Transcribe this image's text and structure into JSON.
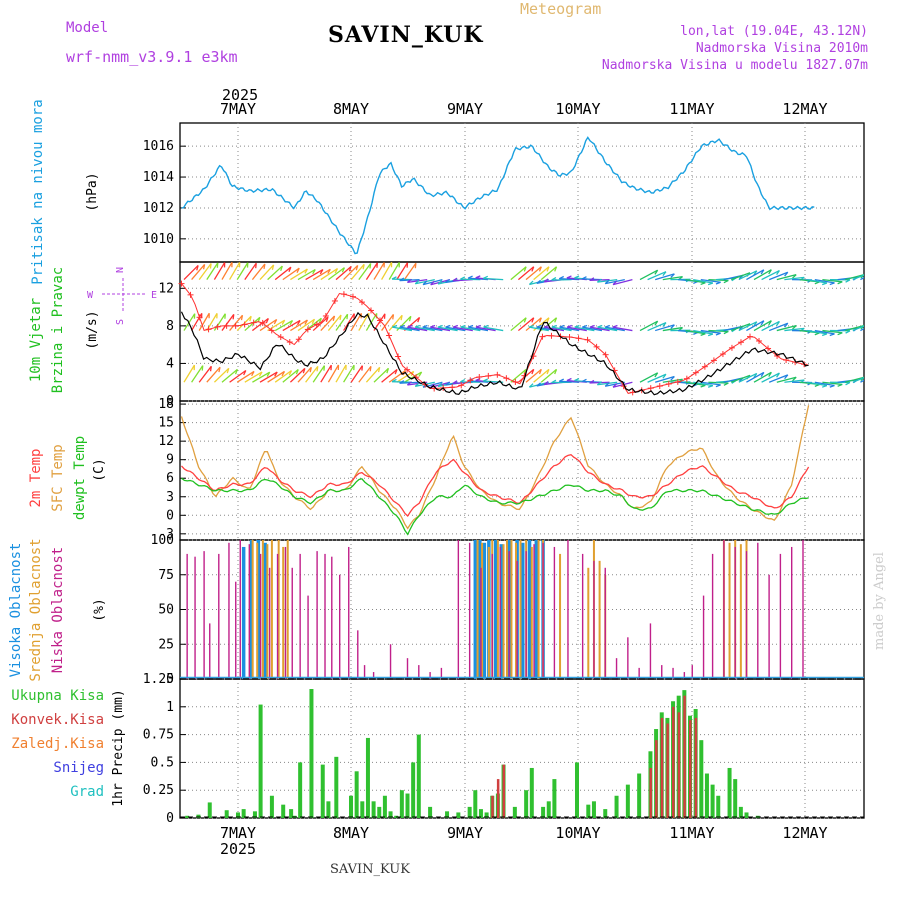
{
  "header": {
    "title": "SAVIN_KUK",
    "subtitle": "Meteogram",
    "model_label": "Model",
    "model_name": "wrf-nmm_v3.9.1  e3km",
    "lonlat": "lon,lat (19.04E, 43.12N)",
    "elevation": "Nadmorska Visina 2010m",
    "model_elevation": "Nadmorska Visina u modelu 1827.07m",
    "footer_title": "SAVIN_KUK",
    "watermark": "made by Angel"
  },
  "colors": {
    "pressure": "#1aa0e0",
    "wind_speed": "#000000",
    "gust": "#ff3030",
    "t2m": "#ff4040",
    "sfc": "#e0a040",
    "dewpt": "#20c020",
    "cloud_high": "#1a90e0",
    "cloud_mid": "#e0a030",
    "cloud_low": "#c0208a",
    "total_precip": "#30c030",
    "conv_precip": "#d04040",
    "frozen": "#f08030",
    "snow": "#4040e0",
    "hail": "#20c0c0",
    "label_purple": "#b040e0",
    "subtitle": "#e0b870"
  },
  "chart_data": [
    {
      "type": "line",
      "id": "pressure",
      "panel_label_color": "Pritisak na nivou mora",
      "unit_label": "(hPa)",
      "x_ticks": [
        "7MAY",
        "8MAY",
        "9MAY",
        "10MAY",
        "11MAY",
        "12MAY"
      ],
      "year": "2025",
      "ylim": [
        1008.5,
        1017.5
      ],
      "y_ticks": [
        "1010",
        "1012",
        "1014",
        "1016"
      ],
      "y_tick_values": [
        1010,
        1012,
        1014,
        1016
      ],
      "x_keypoints_days": [
        0,
        0.2,
        0.35,
        0.45,
        0.6,
        0.8,
        1.0,
        1.1,
        1.2,
        1.4,
        1.55,
        1.65,
        1.75,
        1.85,
        1.95,
        2.05,
        2.2,
        2.35,
        2.5,
        2.65,
        2.8,
        2.95,
        3.1,
        3.25,
        3.35,
        3.45,
        3.6,
        3.75,
        3.9,
        4.0,
        4.15,
        4.3,
        4.45,
        4.6,
        4.75,
        4.9,
        5.0,
        5.1,
        5.2,
        5.35,
        5.55,
        5.6
      ],
      "values": [
        1012.0,
        1013.2,
        1014.8,
        1013.4,
        1013.1,
        1013.2,
        1012.0,
        1013.1,
        1012.5,
        1010.4,
        1009.0,
        1011.4,
        1014.2,
        1014.9,
        1013.4,
        1013.9,
        1012.8,
        1013.0,
        1012.0,
        1012.7,
        1013.2,
        1015.8,
        1016.0,
        1014.6,
        1014.1,
        1014.3,
        1016.6,
        1015.0,
        1013.7,
        1013.3,
        1013.0,
        1013.3,
        1014.4,
        1016.0,
        1016.4,
        1015.6,
        1015.4,
        1013.4,
        1012.0,
        1012.0,
        1012.0,
        1012.0
      ],
      "series": [
        {
          "name": "Pritisak",
          "color_key": "pressure"
        }
      ]
    },
    {
      "type": "line",
      "id": "wind",
      "panel_label_line1": "10m Vjetar",
      "panel_label_line2": "Brzina i Pravac",
      "unit_label": "(m/s)",
      "compass": {
        "north": "N",
        "west": "W",
        "east": "E",
        "south": "S"
      },
      "ylim": [
        0,
        14.8
      ],
      "y_ticks": [
        "0",
        "4",
        "8",
        "12"
      ],
      "y_tick_values": [
        0,
        4,
        8,
        12
      ],
      "x_keypoints_days": [
        0,
        0.1,
        0.2,
        0.35,
        0.5,
        0.7,
        0.85,
        1.0,
        1.1,
        1.25,
        1.4,
        1.55,
        1.65,
        1.8,
        1.95,
        2.2,
        2.45,
        2.6,
        2.8,
        3.0,
        3.2,
        3.45,
        3.6,
        3.75,
        3.95,
        4.2,
        4.45,
        4.65,
        4.85,
        5.05,
        5.3,
        5.55
      ],
      "speed": [
        9.5,
        7.5,
        4.5,
        4.2,
        5.0,
        3.5,
        6.2,
        4.5,
        3.8,
        4.5,
        6.8,
        9.2,
        9.0,
        6.0,
        3.0,
        1.5,
        0.8,
        1.5,
        2.0,
        1.2,
        8.5,
        6.0,
        5.0,
        4.0,
        1.2,
        0.8,
        1.2,
        2.5,
        4.0,
        5.5,
        5.0,
        3.8
      ],
      "gust": [
        12.5,
        11.0,
        7.5,
        8.0,
        8.0,
        8.5,
        7.0,
        6.0,
        7.5,
        8.5,
        11.5,
        11.0,
        10.0,
        8.0,
        3.8,
        1.3,
        1.5,
        2.5,
        2.8,
        1.8,
        7.0,
        6.8,
        6.5,
        5.0,
        0.8,
        1.5,
        2.2,
        3.8,
        5.5,
        7.0,
        4.5,
        3.8
      ],
      "series": [
        {
          "name": "Brzina",
          "color_key": "wind_speed"
        },
        {
          "name": "Udar",
          "color_key": "gust"
        }
      ]
    },
    {
      "type": "line",
      "id": "temperature",
      "panel_label_line1": "2m Temp",
      "panel_label_line2": "SFC Temp",
      "panel_label_line3": "dewpt Temp",
      "unit_label": "(C)",
      "ylim": [
        -4,
        18.5
      ],
      "y_ticks": [
        "-3",
        "0",
        "3",
        "6",
        "9",
        "12",
        "15",
        "18"
      ],
      "y_tick_values": [
        -3,
        0,
        3,
        6,
        9,
        12,
        15,
        18
      ],
      "x_keypoints_days": [
        0,
        0.15,
        0.3,
        0.45,
        0.6,
        0.75,
        0.85,
        1.0,
        1.15,
        1.3,
        1.45,
        1.6,
        1.75,
        1.9,
        2.0,
        2.1,
        2.25,
        2.4,
        2.5,
        2.65,
        2.8,
        3.0,
        3.15,
        3.3,
        3.45,
        3.6,
        3.75,
        3.9,
        4.0,
        4.15,
        4.3,
        4.45,
        4.6,
        4.75,
        4.9,
        5.05,
        5.25,
        5.4,
        5.55
      ],
      "t2m": [
        8,
        6,
        4,
        5,
        5,
        8,
        6,
        4,
        3,
        5,
        5,
        7,
        5,
        2,
        0,
        2,
        7,
        9,
        7,
        4,
        3,
        2,
        5,
        8,
        10,
        7,
        5,
        4,
        3,
        3,
        5,
        7,
        8,
        6,
        4,
        3,
        1,
        3,
        8
      ],
      "sfc": [
        16,
        8,
        3,
        6,
        4,
        11,
        6,
        3,
        1,
        4,
        4,
        8,
        4,
        1,
        -2,
        0,
        6,
        13,
        8,
        4,
        2,
        1,
        6,
        12,
        16,
        8,
        5,
        3,
        1,
        2,
        8,
        10,
        11,
        6,
        3,
        1,
        -1,
        5,
        18
      ],
      "dewpt": [
        6,
        5,
        4,
        4,
        4,
        6,
        5,
        3,
        2,
        4,
        4,
        6,
        3,
        0,
        -3,
        0,
        3,
        3,
        5,
        3,
        2,
        2,
        3,
        4,
        5,
        4,
        4,
        3,
        1,
        1,
        4,
        4,
        4,
        3,
        2,
        1,
        0,
        2,
        3
      ],
      "series": [
        {
          "name": "2m Temp",
          "color_key": "t2m"
        },
        {
          "name": "SFC Temp",
          "color_key": "sfc"
        },
        {
          "name": "dewpt Temp",
          "color_key": "dewpt"
        }
      ]
    },
    {
      "type": "bar",
      "id": "clouds",
      "panel_label_line1": "Visoka Oblacnost",
      "panel_label_line2": "Srednja Oblacnost",
      "panel_label_line3": "Niska Oblacnost",
      "unit_label": "(%)",
      "ylim": [
        0,
        100
      ],
      "y_ticks": [
        "0",
        "25",
        "50",
        "75",
        "100"
      ],
      "y_tick_values": [
        0,
        25,
        50,
        75,
        100
      ],
      "low_x_days": [
        0.05,
        0.12,
        0.2,
        0.25,
        0.33,
        0.42,
        0.48,
        0.52,
        0.6,
        0.7,
        0.78,
        0.85,
        0.92,
        0.98,
        1.05,
        1.12,
        1.2,
        1.27,
        1.33,
        1.4,
        1.48,
        1.56,
        1.62,
        1.7,
        1.85,
        2.0,
        2.1,
        2.2,
        2.3,
        2.45,
        2.55,
        2.65,
        2.75,
        2.82,
        2.9,
        2.97,
        3.05,
        3.12,
        3.2,
        3.3,
        3.42,
        3.55,
        3.65,
        3.75,
        3.85,
        3.95,
        4.05,
        4.15,
        4.25,
        4.35,
        4.45,
        4.52,
        4.62,
        4.7,
        4.8,
        4.9,
        5.0,
        5.1,
        5.2,
        5.3,
        5.4,
        5.5
      ],
      "low_values": [
        90,
        88,
        92,
        40,
        90,
        98,
        70,
        100,
        97,
        90,
        80,
        90,
        95,
        80,
        90,
        60,
        92,
        90,
        88,
        75,
        95,
        35,
        10,
        5,
        25,
        15,
        10,
        5,
        8,
        100,
        98,
        80,
        90,
        95,
        92,
        85,
        92,
        97,
        98,
        95,
        100,
        90,
        85,
        80,
        15,
        30,
        8,
        40,
        10,
        8,
        5,
        10,
        60,
        90,
        100,
        95,
        92,
        98,
        75,
        90,
        95,
        100
      ],
      "mid_x_days": [
        0.63,
        0.67,
        0.72,
        0.76,
        0.8,
        0.86,
        0.9,
        0.94,
        2.62,
        2.66,
        2.72,
        2.75,
        2.8,
        2.85,
        2.88,
        2.92,
        2.96,
        3.0,
        3.05,
        3.1,
        3.16,
        3.2,
        3.35,
        3.6,
        3.65,
        3.7,
        3.75,
        4.8,
        4.85,
        4.9,
        4.95,
        5.0
      ],
      "mid_values": [
        100,
        98,
        100,
        97,
        100,
        100,
        95,
        100,
        100,
        98,
        95,
        100,
        100,
        97,
        100,
        100,
        98,
        100,
        100,
        95,
        100,
        100,
        90,
        80,
        100,
        85,
        75,
        100,
        98,
        100,
        97,
        100
      ],
      "high_x_days": [
        0.55,
        0.62,
        0.68,
        0.74,
        2.6,
        2.64,
        2.68,
        2.72,
        2.78,
        2.83,
        2.9,
        2.97,
        3.02,
        3.08,
        3.14,
        3.2
      ],
      "high_values": [
        95,
        100,
        100,
        98,
        100,
        100,
        98,
        100,
        100,
        97,
        100,
        100,
        98,
        100,
        100,
        100
      ],
      "series": [
        {
          "name": "Visoka",
          "color_key": "cloud_high"
        },
        {
          "name": "Srednja",
          "color_key": "cloud_mid"
        },
        {
          "name": "Niska",
          "color_key": "cloud_low"
        }
      ]
    },
    {
      "type": "bar",
      "id": "precip",
      "unit_label": "1hr Precip (mm)",
      "legend": [
        "Ukupna Kisa",
        "Konvek.Kisa",
        "Zaledj.Kisa",
        "Snijeg",
        "Grad"
      ],
      "ylim": [
        0,
        1.25
      ],
      "y_ticks": [
        "0",
        "0.25",
        "0.5",
        "0.75",
        "1",
        "1.25"
      ],
      "y_tick_values": [
        0,
        0.25,
        0.5,
        0.75,
        1,
        1.25
      ],
      "x_bottom_ticks": [
        "7MAY",
        "8MAY",
        "9MAY",
        "10MAY",
        "11MAY",
        "12MAY"
      ],
      "year_bottom": "2025",
      "total_x_days": [
        0.05,
        0.15,
        0.25,
        0.4,
        0.5,
        0.55,
        0.65,
        0.7,
        0.8,
        0.9,
        0.97,
        1.0,
        1.05,
        1.15,
        1.25,
        1.3,
        1.37,
        1.5,
        1.55,
        1.6,
        1.65,
        1.7,
        1.75,
        1.8,
        1.85,
        1.9,
        1.95,
        2.0,
        2.05,
        2.1,
        2.2,
        2.35,
        2.45,
        2.55,
        2.6,
        2.65,
        2.7,
        2.75,
        2.8,
        2.85,
        2.95,
        3.05,
        3.1,
        3.2,
        3.25,
        3.3,
        3.5,
        3.6,
        3.65,
        3.75,
        3.85,
        3.95,
        4.05,
        4.15,
        4.2,
        4.25,
        4.3,
        4.35,
        4.4,
        4.45,
        4.5,
        4.55,
        4.6,
        4.65,
        4.7,
        4.75,
        4.85,
        4.9,
        4.95,
        5.0,
        5.1
      ],
      "total_values": [
        0.02,
        0.03,
        0.14,
        0.07,
        0.05,
        0.08,
        0.06,
        1.02,
        0.2,
        0.12,
        0.08,
        0.02,
        0.5,
        1.16,
        0.48,
        0.15,
        0.55,
        0.2,
        0.42,
        0.15,
        0.72,
        0.15,
        0.1,
        0.2,
        0.06,
        0.02,
        0.25,
        0.22,
        0.5,
        0.75,
        0.1,
        0.06,
        0.05,
        0.1,
        0.25,
        0.08,
        0.05,
        0.2,
        0.22,
        0.48,
        0.1,
        0.25,
        0.45,
        0.1,
        0.15,
        0.35,
        0.5,
        0.12,
        0.15,
        0.08,
        0.2,
        0.3,
        0.4,
        0.6,
        0.8,
        0.95,
        0.9,
        1.05,
        1.1,
        1.15,
        0.92,
        0.98,
        0.7,
        0.4,
        0.3,
        0.2,
        0.45,
        0.35,
        0.1,
        0.05,
        0.02
      ],
      "conv_x_days": [
        2.75,
        2.8,
        2.85,
        4.15,
        4.2,
        4.25,
        4.3,
        4.35,
        4.4,
        4.45,
        4.5,
        4.55
      ],
      "conv_values": [
        0.2,
        0.35,
        0.48,
        0.45,
        0.7,
        0.9,
        0.85,
        1.0,
        0.95,
        1.1,
        0.88,
        0.9
      ],
      "series": [
        {
          "name": "Ukupna Kisa",
          "color_key": "total_precip"
        },
        {
          "name": "Konvek.Kisa",
          "color_key": "conv_precip"
        }
      ]
    }
  ]
}
